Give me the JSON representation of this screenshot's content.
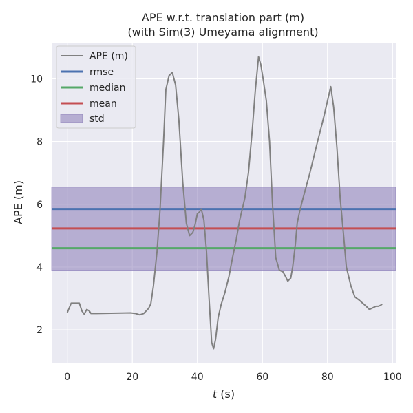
{
  "chart_data": {
    "type": "line",
    "title": "APE w.r.t. translation part (m)",
    "subtitle": "(with Sim(3) Umeyama alignment)",
    "xlabel_italic": "t",
    "xlabel_unit": " (s)",
    "ylabel": "APE (m)",
    "xlim": [
      -4.8,
      101
    ],
    "ylim": [
      0.95,
      11.15
    ],
    "xticks": [
      0,
      20,
      40,
      60,
      80,
      100
    ],
    "yticks": [
      2,
      4,
      6,
      8,
      10
    ],
    "grid": true,
    "legend_position": "top-left",
    "colors": {
      "background": "#eaeaf2",
      "grid": "#ffffff",
      "ape": "#808080",
      "rmse": "#4c72b0",
      "median": "#55a868",
      "mean": "#c44e52",
      "std": "#8172b2"
    },
    "legend": [
      "APE (m)",
      "rmse",
      "median",
      "mean",
      "std"
    ],
    "series": [
      {
        "name": "APE (m)",
        "x": [
          0,
          1.2,
          3.7,
          4.5,
          5.2,
          6,
          6.8,
          7.3,
          8.2,
          9,
          19.5,
          21,
          22.3,
          23.5,
          25,
          25.7,
          26.5,
          27.6,
          28.5,
          29.6,
          30.3,
          31.3,
          32.3,
          33.3,
          34.3,
          35.5,
          36.6,
          37.6,
          38.6,
          39.3,
          40,
          40.6,
          41.2,
          42,
          42.8,
          43.6,
          44.4,
          45,
          45.6,
          46.4,
          47.3,
          48.5,
          49.7,
          50.8,
          52,
          53,
          54.6,
          55.7,
          56.9,
          57.8,
          58.8,
          59.5,
          60.2,
          61.2,
          62.2,
          63.1,
          64.1,
          65.2,
          66.3,
          67.1,
          67.8,
          68.7,
          69.3,
          70.1,
          70.7,
          71.5,
          72.5,
          74.6,
          76.7,
          78.9,
          81,
          81.9,
          82.9,
          83.9,
          84.8,
          85.8,
          87.2,
          88.4,
          89.7,
          90.8,
          91.9,
          92.9,
          93.9,
          94.9,
          95.6,
          96.3,
          96.8
        ],
        "values": [
          2.55,
          2.85,
          2.85,
          2.6,
          2.5,
          2.65,
          2.6,
          2.52,
          2.52,
          2.52,
          2.54,
          2.52,
          2.48,
          2.52,
          2.68,
          2.83,
          3.4,
          4.5,
          5.8,
          8,
          9.65,
          10.1,
          10.2,
          9.8,
          8.7,
          6.7,
          5.4,
          5.0,
          5.1,
          5.35,
          5.7,
          5.75,
          5.85,
          5.5,
          4.5,
          3.0,
          1.6,
          1.4,
          1.7,
          2.4,
          2.8,
          3.2,
          3.7,
          4.3,
          4.9,
          5.5,
          6.2,
          7.0,
          8.4,
          9.6,
          10.7,
          10.45,
          10.0,
          9.3,
          8.0,
          6.0,
          4.3,
          3.9,
          3.85,
          3.7,
          3.55,
          3.65,
          4.0,
          4.7,
          5.4,
          5.8,
          6.2,
          7.0,
          7.9,
          8.8,
          9.75,
          9.1,
          7.8,
          6.2,
          5.2,
          4.0,
          3.4,
          3.05,
          2.95,
          2.85,
          2.75,
          2.65,
          2.7,
          2.75,
          2.75,
          2.78,
          2.82
        ]
      }
    ],
    "stats": {
      "rmse": 5.85,
      "median": 4.6,
      "mean": 5.23,
      "std_band": [
        3.9,
        6.55
      ]
    }
  }
}
